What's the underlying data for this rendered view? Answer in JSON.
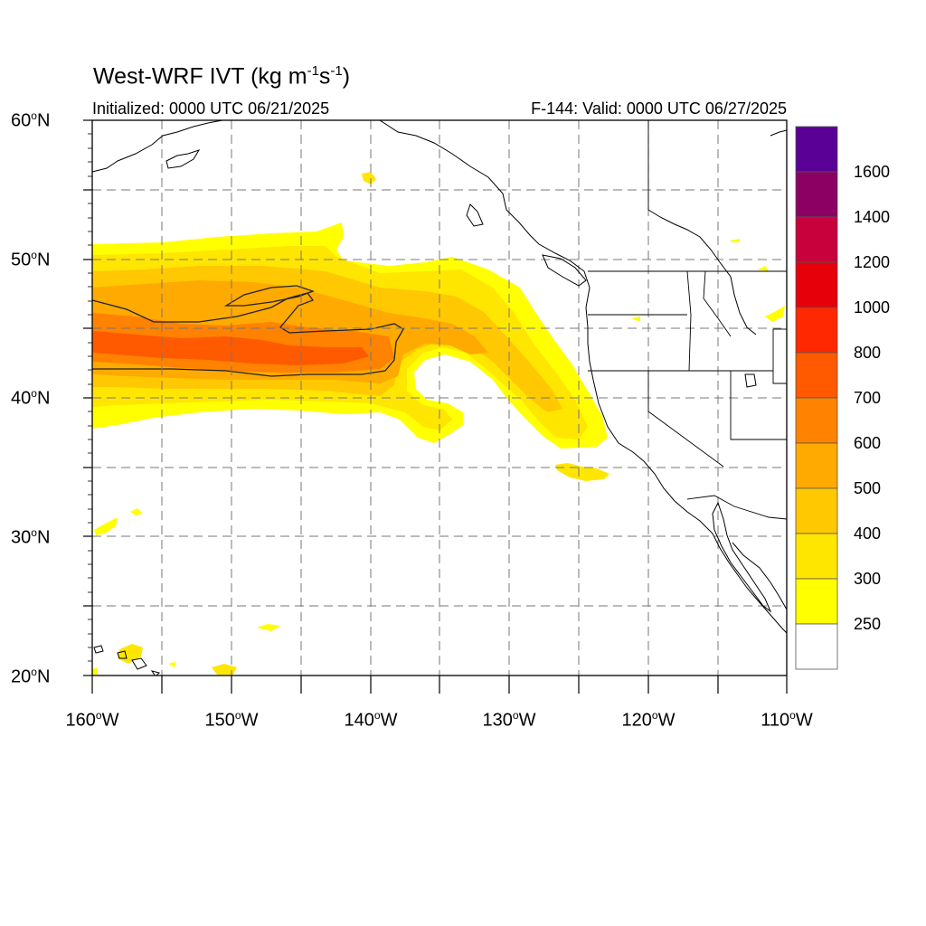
{
  "title": {
    "prefix": "West-WRF IVT (kg m",
    "sup1": "-1",
    "mid": "s",
    "sup2": "-1",
    "suffix": ")"
  },
  "initialized": "Initialized: 0000 UTC 06/21/2025",
  "valid": "F-144: Valid: 0000 UTC 06/27/2025",
  "map": {
    "extent": {
      "lon_min": -160,
      "lon_max": -110,
      "lat_min": 20,
      "lat_max": 60
    },
    "grid_lines": "dashed, every 5 degrees",
    "lat_labels": [
      {
        "deg": "60",
        "hemi": "N"
      },
      {
        "deg": "50",
        "hemi": "N"
      },
      {
        "deg": "40",
        "hemi": "N"
      },
      {
        "deg": "30",
        "hemi": "N"
      },
      {
        "deg": "20",
        "hemi": "N"
      }
    ],
    "lon_labels": [
      {
        "deg": "160",
        "hemi": "W"
      },
      {
        "deg": "150",
        "hemi": "W"
      },
      {
        "deg": "140",
        "hemi": "W"
      },
      {
        "deg": "130",
        "hemi": "W"
      },
      {
        "deg": "120",
        "hemi": "W"
      },
      {
        "deg": "110",
        "hemi": "W"
      }
    ],
    "features": "Atmospheric river of IVT 250-700 kg m-1 s-1 extending from the central North Pacific toward the Oregon/Northern California coast"
  },
  "colorbar": {
    "labels": [
      "1600",
      "1400",
      "1200",
      "1000",
      "800",
      "700",
      "600",
      "500",
      "400",
      "300",
      "250"
    ],
    "colors_top_to_bottom": [
      "#5a0096",
      "#8c0064",
      "#c8003c",
      "#e6000a",
      "#ff2800",
      "#ff5a00",
      "#ff8200",
      "#ffaa00",
      "#ffc800",
      "#ffe600",
      "#ffff00",
      "#ffffff"
    ]
  }
}
